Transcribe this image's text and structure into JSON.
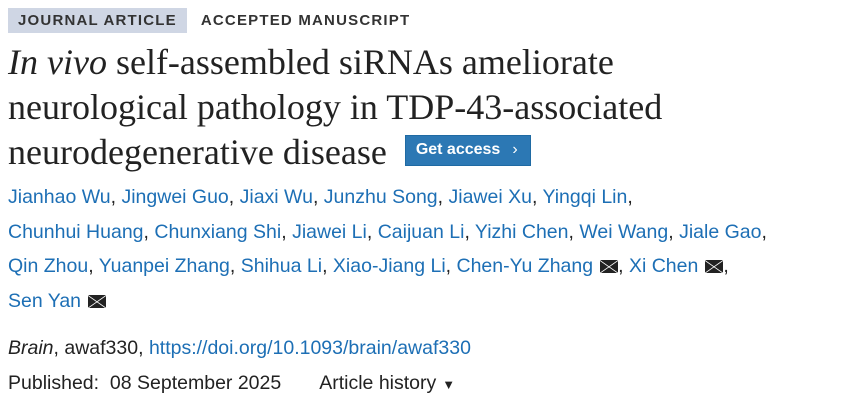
{
  "tags": {
    "type": "JOURNAL ARTICLE",
    "status": "ACCEPTED MANUSCRIPT"
  },
  "title": {
    "italic": "In vivo",
    "rest_line1": " self-assembled siRNAs ameliorate",
    "line2": "neurological pathology in TDP-43-associated",
    "line3": "neurodegenerative disease"
  },
  "get_access": {
    "label": "Get access",
    "icon": "chevron-right-icon"
  },
  "authors": [
    {
      "name": "Jianhao Wu"
    },
    {
      "name": "Jingwei Guo"
    },
    {
      "name": "Jiaxi Wu"
    },
    {
      "name": "Junzhu Song"
    },
    {
      "name": "Jiawei Xu"
    },
    {
      "name": "Yingqi Lin"
    },
    {
      "name": "Chunhui Huang"
    },
    {
      "name": "Chunxiang Shi"
    },
    {
      "name": "Jiawei Li"
    },
    {
      "name": "Caijuan Li"
    },
    {
      "name": "Yizhi Chen"
    },
    {
      "name": "Wei Wang"
    },
    {
      "name": "Jiale Gao"
    },
    {
      "name": "Qin Zhou"
    },
    {
      "name": "Yuanpei Zhang"
    },
    {
      "name": "Shihua Li"
    },
    {
      "name": "Xiao-Jiang Li"
    },
    {
      "name": "Chen-Yu Zhang",
      "corresponding": true
    },
    {
      "name": "Xi Chen",
      "corresponding": true
    },
    {
      "name": "Sen Yan",
      "corresponding": true
    }
  ],
  "journal": {
    "name": "Brain",
    "id": ", awaf330, ",
    "doi": "https://doi.org/10.1093/brain/awaf330"
  },
  "published": {
    "label": "Published:",
    "date": "08 September 2025"
  },
  "history": {
    "label": "Article history",
    "icon": "caret-down-icon"
  },
  "colors": {
    "link": "#1d6fb5",
    "button": "#2c78b4",
    "tag_bg": "#cfd6e4"
  }
}
